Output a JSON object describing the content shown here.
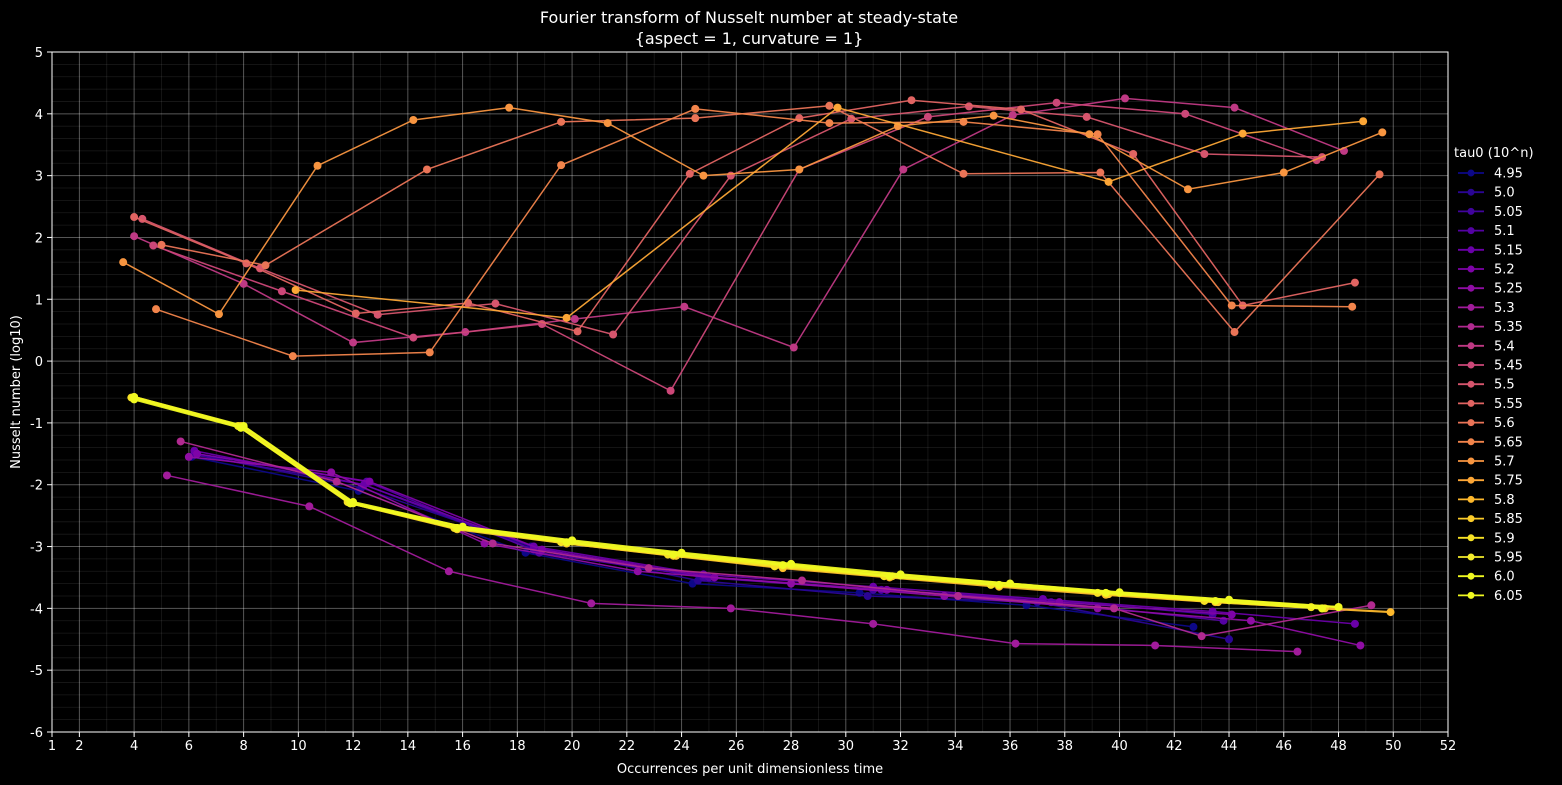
{
  "chart_data": {
    "type": "line",
    "title": "Fourier transform of Nusselt number at steady-state",
    "subtitle": "{aspect = 1, curvature = 1}",
    "xlabel": "Occurrences per unit dimensionless time",
    "ylabel": "Nusselt number (log10)",
    "xlim": [
      1,
      52
    ],
    "ylim": [
      -6,
      5
    ],
    "xticks": [
      1,
      2,
      4,
      6,
      8,
      10,
      12,
      14,
      16,
      18,
      20,
      22,
      24,
      26,
      28,
      30,
      32,
      34,
      36,
      38,
      40,
      42,
      44,
      46,
      48,
      50,
      52
    ],
    "yticks": [
      -6,
      -5,
      -4,
      -3,
      -2,
      -1,
      0,
      1,
      2,
      3,
      4,
      5
    ],
    "grid": true,
    "legend_title": "tau0 (10^n)",
    "legend_position": "right",
    "series": [
      {
        "name": "4.95",
        "color": "#0d0887",
        "x": [
          6.1,
          12.2,
          18.3,
          24.4,
          30.5,
          36.6,
          42.7
        ],
        "y": [
          -1.55,
          -2.1,
          -3.1,
          -3.6,
          -3.75,
          -3.95,
          -4.3
        ]
      },
      {
        "name": "5.0",
        "color": "#2a0593",
        "x": [
          6.2,
          12.3,
          18.5,
          24.6,
          30.8,
          37.0,
          44.0
        ],
        "y": [
          -1.5,
          -2.05,
          -3.0,
          -3.55,
          -3.8,
          -3.9,
          -4.5
        ]
      },
      {
        "name": "5.05",
        "color": "#41049d",
        "x": [
          6.2,
          12.4,
          18.6,
          24.8,
          31.0,
          37.2,
          43.4
        ],
        "y": [
          -1.52,
          -2.0,
          -3.05,
          -3.5,
          -3.7,
          -3.85,
          -4.1
        ]
      },
      {
        "name": "5.1",
        "color": "#5402a3",
        "x": [
          6.3,
          12.5,
          18.8,
          25.0,
          31.3,
          37.5,
          43.8
        ],
        "y": [
          -1.5,
          -1.95,
          -3.1,
          -3.5,
          -3.7,
          -3.9,
          -4.2
        ]
      },
      {
        "name": "5.15",
        "color": "#6a00a8",
        "x": [
          6.2,
          12.4,
          18.6,
          24.8,
          31.0,
          37.2,
          43.4,
          48.6
        ],
        "y": [
          -1.45,
          -2.0,
          -3.0,
          -3.45,
          -3.65,
          -3.85,
          -4.05,
          -4.25
        ]
      },
      {
        "name": "5.2",
        "color": "#7e03a8",
        "x": [
          6.3,
          12.6,
          18.9,
          25.2,
          31.5,
          37.8,
          44.1
        ],
        "y": [
          -1.5,
          -1.95,
          -3.05,
          -3.5,
          -3.7,
          -3.9,
          -4.1
        ]
      },
      {
        "name": "5.25",
        "color": "#8f0da4",
        "x": [
          6.0,
          11.2,
          16.8,
          22.4,
          28.0,
          33.6,
          39.2,
          44.8,
          48.8
        ],
        "y": [
          -1.55,
          -1.8,
          -2.95,
          -3.4,
          -3.6,
          -3.8,
          -4.0,
          -4.2,
          -4.6
        ]
      },
      {
        "name": "5.3",
        "color": "#a11b9b",
        "x": [
          5.2,
          10.4,
          15.5,
          20.7,
          25.8,
          31.0,
          36.2,
          41.3,
          46.5
        ],
        "y": [
          -1.85,
          -2.35,
          -3.4,
          -3.92,
          -4.0,
          -4.25,
          -4.57,
          -4.6,
          -4.7
        ]
      },
      {
        "name": "5.35",
        "color": "#b12a90",
        "x": [
          5.7,
          11.4,
          17.1,
          22.8,
          28.4,
          34.1,
          39.8,
          43.0,
          49.2
        ],
        "y": [
          -1.3,
          -1.95,
          -2.95,
          -3.35,
          -3.55,
          -3.8,
          -4.0,
          -4.45,
          -3.95
        ]
      },
      {
        "name": "5.4",
        "color": "#bf3984",
        "x": [
          4.0,
          8.0,
          12.0,
          16.1,
          20.1,
          24.1,
          28.1,
          32.1,
          36.1,
          40.2,
          44.2,
          48.2
        ],
        "y": [
          2.02,
          1.25,
          0.3,
          0.47,
          0.68,
          0.88,
          0.22,
          3.1,
          3.98,
          4.25,
          4.1,
          3.4
        ]
      },
      {
        "name": "5.45",
        "color": "#cc4778",
        "x": [
          4.7,
          9.4,
          14.2,
          18.9,
          23.6,
          28.3,
          33.0,
          37.7,
          42.4,
          47.2
        ],
        "y": [
          1.87,
          1.13,
          0.38,
          0.6,
          -0.48,
          3.1,
          3.95,
          4.18,
          4.0,
          3.25
        ]
      },
      {
        "name": "5.5",
        "color": "#d6556d",
        "x": [
          4.3,
          8.6,
          12.9,
          17.2,
          21.5,
          25.8,
          30.2,
          34.5,
          38.8,
          43.1,
          47.4
        ],
        "y": [
          2.3,
          1.5,
          0.75,
          0.93,
          0.43,
          3.0,
          3.92,
          4.12,
          3.95,
          3.35,
          3.3
        ]
      },
      {
        "name": "5.55",
        "color": "#e16462",
        "x": [
          4.0,
          8.1,
          12.1,
          16.2,
          20.2,
          24.3,
          28.3,
          32.4,
          36.4,
          40.5,
          44.5,
          48.6
        ],
        "y": [
          2.33,
          1.58,
          0.77,
          0.94,
          0.48,
          3.03,
          3.93,
          4.22,
          4.07,
          3.35,
          0.9,
          1.27
        ]
      },
      {
        "name": "5.6",
        "color": "#ea7457",
        "x": [
          5.0,
          8.8,
          14.7,
          19.6,
          24.5,
          29.4,
          34.3,
          39.3,
          44.2,
          49.5
        ],
        "y": [
          1.88,
          1.55,
          3.1,
          3.87,
          3.93,
          4.13,
          3.03,
          3.05,
          0.47,
          3.02
        ]
      },
      {
        "name": "5.65",
        "color": "#f2844b",
        "x": [
          4.8,
          9.8,
          14.8,
          19.6,
          24.5,
          29.4,
          34.3,
          39.2,
          44.1,
          48.5
        ],
        "y": [
          0.84,
          0.08,
          0.14,
          3.17,
          4.08,
          3.85,
          3.87,
          3.67,
          0.9,
          0.88
        ]
      },
      {
        "name": "5.7",
        "color": "#f89540",
        "x": [
          3.6,
          7.1,
          10.7,
          14.2,
          17.7,
          21.3,
          24.8,
          28.3,
          31.9,
          35.4,
          38.9,
          42.5,
          46.0,
          49.6
        ],
        "y": [
          1.6,
          0.76,
          3.16,
          3.9,
          4.1,
          3.85,
          3.0,
          3.1,
          3.8,
          3.97,
          3.67,
          2.78,
          3.05,
          3.7
        ]
      },
      {
        "name": "5.75",
        "color": "#fca636",
        "x": [
          9.9,
          19.8,
          29.7,
          39.6,
          44.5,
          48.9
        ],
        "y": [
          1.15,
          0.7,
          4.1,
          2.9,
          3.68,
          3.88
        ]
      },
      {
        "name": "5.8",
        "color": "#fdb82c",
        "x": [
          4.0,
          7.9,
          11.9,
          15.8,
          19.8,
          23.7,
          27.7,
          31.6,
          35.6,
          39.5,
          43.5,
          47.4,
          49.9
        ],
        "y": [
          -0.58,
          -1.05,
          -2.3,
          -2.7,
          -2.95,
          -3.15,
          -3.35,
          -3.5,
          -3.65,
          -3.78,
          -3.9,
          -4.0,
          -4.06
        ]
      },
      {
        "name": "5.85",
        "color": "#fbcc2a",
        "x": [
          4.0,
          7.9,
          11.9,
          15.8,
          19.8,
          23.8,
          27.7,
          31.7,
          35.6,
          39.6,
          43.6,
          47.5
        ],
        "y": [
          -0.6,
          -1.07,
          -2.3,
          -2.72,
          -2.95,
          -3.15,
          -3.33,
          -3.48,
          -3.63,
          -3.77,
          -3.9,
          -4.0
        ]
      },
      {
        "name": "5.9",
        "color": "#f7e225",
        "x": [
          3.9,
          7.8,
          11.8,
          15.7,
          19.6,
          23.5,
          27.4,
          31.4,
          35.3,
          39.2,
          43.1,
          47.0
        ],
        "y": [
          -0.59,
          -1.05,
          -2.28,
          -2.7,
          -2.93,
          -3.13,
          -3.32,
          -3.48,
          -3.62,
          -3.75,
          -3.88,
          -3.98
        ]
      },
      {
        "name": "5.95",
        "color": "#f3ec2b",
        "x": [
          4.0,
          8.0,
          12.0,
          16.0,
          20.0,
          24.0,
          28.0,
          32.0,
          36.0,
          40.0,
          44.0,
          48.0
        ],
        "y": [
          -0.6,
          -1.06,
          -2.3,
          -2.68,
          -2.92,
          -3.12,
          -3.3,
          -3.47,
          -3.6,
          -3.75,
          -3.87,
          -3.98
        ]
      },
      {
        "name": "6.0",
        "color": "#f0f921",
        "x": [
          4.0,
          8.0,
          12.0,
          16.0,
          20.0,
          24.0,
          28.0,
          32.0,
          36.0,
          40.0,
          44.0,
          48.0
        ],
        "y": [
          -0.58,
          -1.05,
          -2.28,
          -2.68,
          -2.9,
          -3.1,
          -3.28,
          -3.45,
          -3.6,
          -3.74,
          -3.86,
          -3.98
        ]
      },
      {
        "name": "6.05",
        "color": "#f0f921",
        "x": [
          4.0,
          7.9,
          11.9,
          15.8,
          19.8,
          23.7,
          27.7,
          31.6,
          35.6,
          39.5,
          43.5,
          47.4
        ],
        "y": [
          -0.62,
          -1.08,
          -2.3,
          -2.7,
          -2.93,
          -3.13,
          -3.3,
          -3.48,
          -3.62,
          -3.75,
          -3.88,
          -4.0
        ]
      }
    ]
  }
}
